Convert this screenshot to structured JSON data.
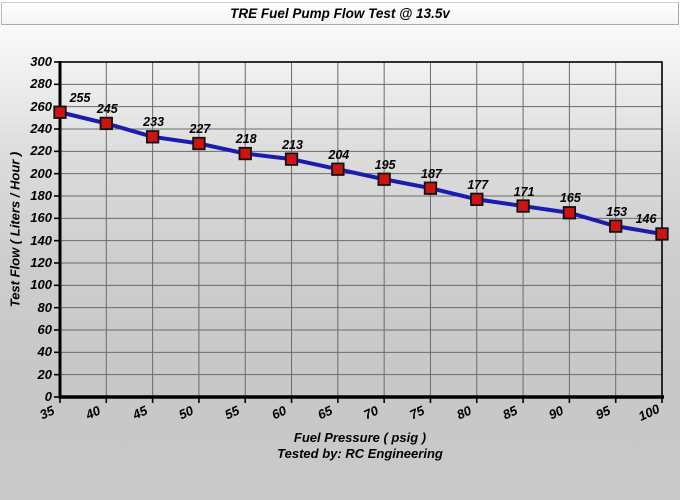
{
  "title_bar": {
    "title": "TRE Fuel Pump Flow Test @ 13.5v"
  },
  "chart_data": {
    "type": "line",
    "title": "TRE Fuel Pump Flow Test @ 13.5v",
    "xlabel": "Fuel Pressure ( psig )",
    "ylabel": "Test Flow ( Liters / Hour )",
    "footnote": "Tested by: RC Engineering",
    "x": [
      35,
      40,
      45,
      50,
      55,
      60,
      65,
      70,
      75,
      80,
      85,
      90,
      95,
      100
    ],
    "series": [
      {
        "name": "Test Flow",
        "values": [
          255,
          245,
          233,
          227,
          218,
          213,
          204,
          195,
          187,
          177,
          171,
          165,
          153,
          146
        ],
        "line_color": "#1b1bb0",
        "marker": "square",
        "marker_fill": "#cf1310",
        "marker_stroke": "#111111"
      }
    ],
    "x_ticks": [
      35,
      40,
      45,
      50,
      55,
      60,
      65,
      70,
      75,
      80,
      85,
      90,
      95,
      100
    ],
    "y_ticks": [
      0,
      20,
      40,
      60,
      80,
      100,
      120,
      140,
      160,
      180,
      200,
      220,
      240,
      260,
      280,
      300
    ],
    "xlim": [
      35,
      100
    ],
    "ylim": [
      0,
      300
    ],
    "grid": true,
    "grid_color": "#6b6b6b",
    "axis_color": "#000000",
    "data_labels": true,
    "legend": "none"
  }
}
